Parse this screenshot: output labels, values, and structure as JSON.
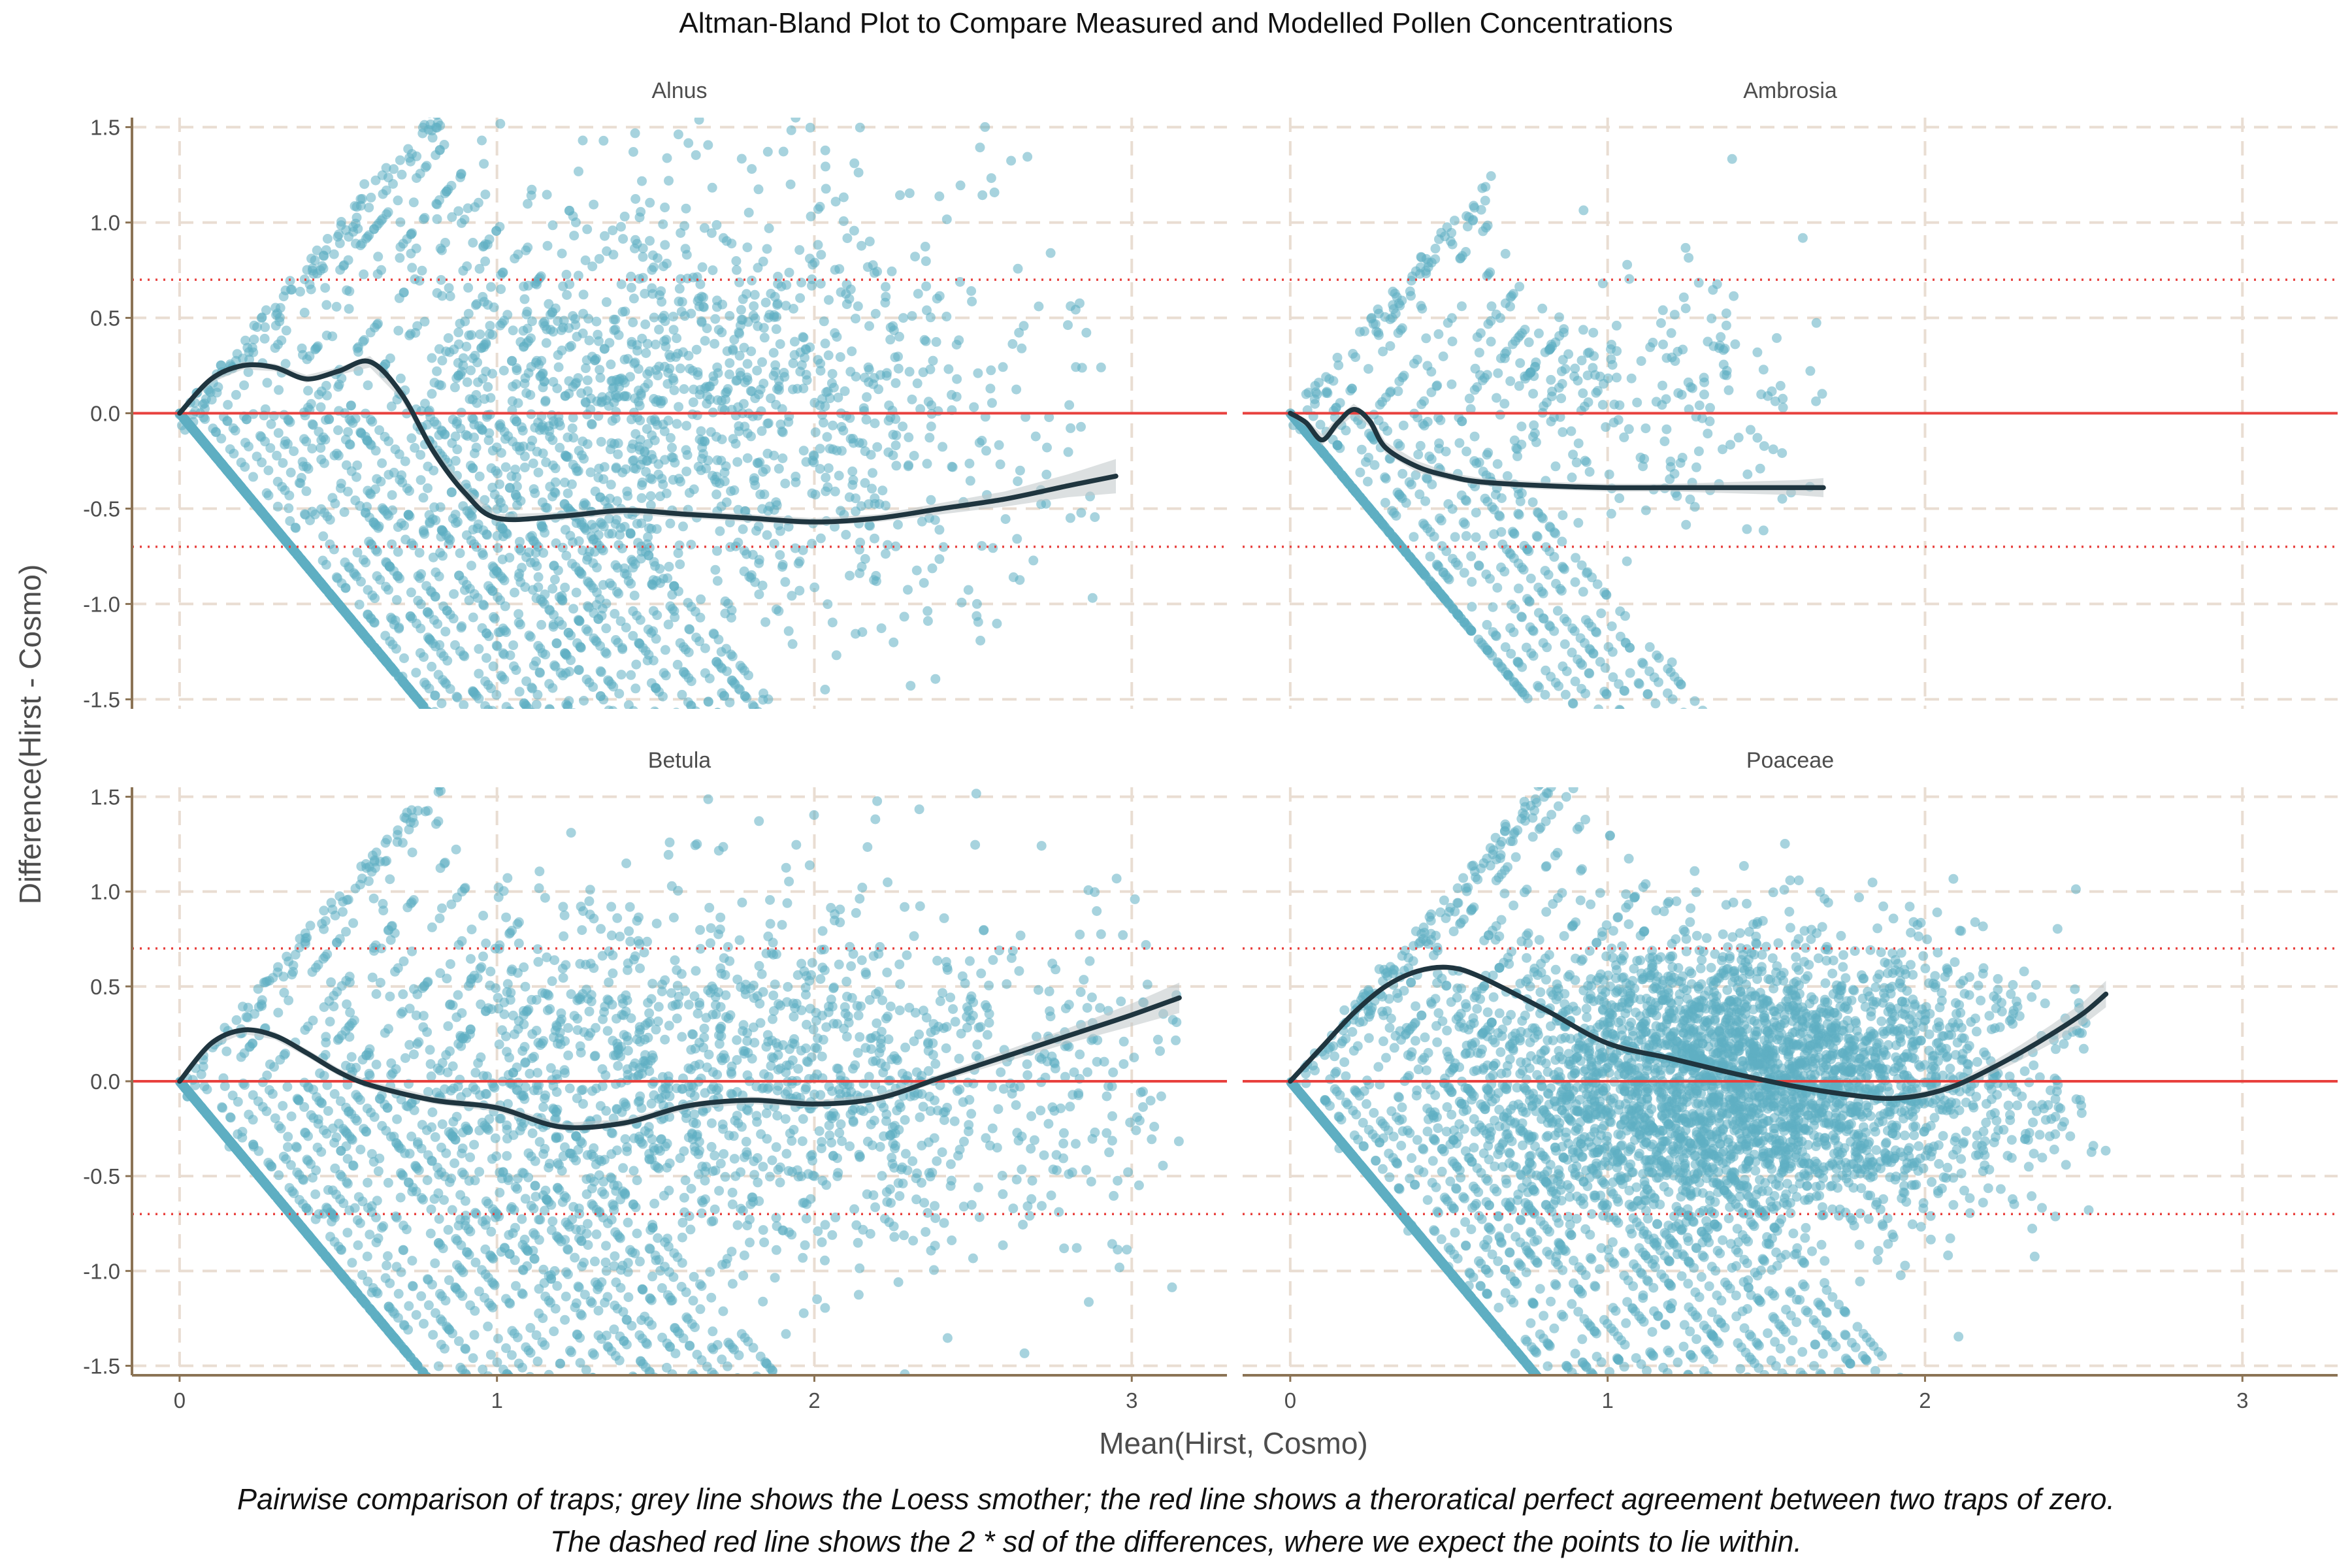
{
  "chart_data": {
    "type": "scatter",
    "title": "Altman-Bland Plot to Compare Measured and Modelled Pollen Concentrations",
    "xlabel": "Mean(Hirst, Cosmo)",
    "ylabel": "Difference(Hirst - Cosmo)",
    "caption_lines": [
      "Pairwise comparison of traps; grey line shows the Loess smother; the red line shows a theroratical perfect agreement between two traps of zero.",
      "The dashed red line shows the 2 * sd of the differences, where we expect the points to lie within."
    ],
    "xlim": [
      -0.15,
      3.3
    ],
    "ylim": [
      -1.55,
      1.55
    ],
    "x_ticks": [
      0,
      1,
      2,
      3
    ],
    "x_tick_labels": [
      "0",
      "1",
      "2",
      "3"
    ],
    "y_ticks": [
      -1.5,
      -1.0,
      -0.5,
      0.0,
      0.5,
      1.0,
      1.5
    ],
    "y_tick_labels": [
      "-1.5",
      "-1.0",
      "-0.5",
      "0.0",
      "0.5",
      "1.0",
      "1.5"
    ],
    "grid": true,
    "reference_line_y": 0,
    "sd_limits": [
      0.7,
      -0.7
    ],
    "colors": {
      "points": "#5eaec3",
      "smoother": "#1f353f",
      "ribbon": "#bfc6c9",
      "reference": "#e8413e",
      "sd_limits": "#e8413e",
      "grid": "#e9ddd2",
      "axis": "#8b7355"
    },
    "panels": [
      {
        "label": "Alnus",
        "smoother": {
          "x": [
            0,
            0.1,
            0.2,
            0.3,
            0.4,
            0.5,
            0.6,
            0.7,
            0.8,
            0.9,
            1.0,
            1.2,
            1.4,
            1.6,
            1.8,
            2.0,
            2.2,
            2.4,
            2.6,
            2.8,
            2.95
          ],
          "y": [
            0,
            0.18,
            0.25,
            0.24,
            0.18,
            0.22,
            0.27,
            0.1,
            -0.2,
            -0.42,
            -0.55,
            -0.54,
            -0.51,
            -0.53,
            -0.55,
            -0.57,
            -0.55,
            -0.5,
            -0.45,
            -0.38,
            -0.33
          ],
          "ribbon_half_width": [
            0.01,
            0.02,
            0.02,
            0.02,
            0.02,
            0.02,
            0.03,
            0.03,
            0.03,
            0.03,
            0.02,
            0.02,
            0.02,
            0.02,
            0.02,
            0.02,
            0.02,
            0.03,
            0.04,
            0.06,
            0.09
          ]
        },
        "scatter": {
          "count": 1400,
          "seed": 11,
          "x_mean": 1.55,
          "x_sd": 0.55,
          "x_max": 2.95,
          "y_sd": 0.7,
          "diag_max_k": 1.1,
          "diag_lines": 18,
          "diag_spacing": 0.13,
          "diag_points_per_line": 60,
          "diag_start": 0.22,
          "diag_xmax": 1.1
        }
      },
      {
        "label": "Ambrosia",
        "smoother": {
          "x": [
            0,
            0.05,
            0.1,
            0.15,
            0.2,
            0.25,
            0.3,
            0.4,
            0.5,
            0.6,
            0.8,
            1.0,
            1.2,
            1.4,
            1.6,
            1.68
          ],
          "y": [
            0,
            -0.05,
            -0.14,
            -0.05,
            0.02,
            -0.04,
            -0.18,
            -0.28,
            -0.33,
            -0.36,
            -0.38,
            -0.39,
            -0.39,
            -0.39,
            -0.39,
            -0.39
          ],
          "ribbon_half_width": [
            0.01,
            0.02,
            0.03,
            0.03,
            0.03,
            0.03,
            0.03,
            0.03,
            0.02,
            0.02,
            0.02,
            0.02,
            0.02,
            0.03,
            0.04,
            0.05
          ]
        },
        "scatter": {
          "count": 240,
          "seed": 23,
          "x_mean": 1.05,
          "x_sd": 0.32,
          "x_max": 1.68,
          "y_sd": 0.45,
          "diag_max_k": 0.85,
          "diag_lines": 9,
          "diag_spacing": 0.13,
          "diag_points_per_line": 40,
          "diag_start": 0.22,
          "diag_xmax": 0.8
        }
      },
      {
        "label": "Betula",
        "smoother": {
          "x": [
            0,
            0.1,
            0.2,
            0.3,
            0.4,
            0.5,
            0.6,
            0.8,
            1.0,
            1.2,
            1.4,
            1.6,
            1.8,
            2.0,
            2.2,
            2.4,
            2.6,
            2.8,
            3.0,
            3.15
          ],
          "y": [
            0,
            0.2,
            0.27,
            0.24,
            0.15,
            0.05,
            -0.02,
            -0.1,
            -0.14,
            -0.24,
            -0.22,
            -0.13,
            -0.1,
            -0.12,
            -0.09,
            0.02,
            0.13,
            0.24,
            0.35,
            0.44
          ],
          "ribbon_half_width": [
            0.01,
            0.02,
            0.02,
            0.02,
            0.02,
            0.02,
            0.02,
            0.02,
            0.02,
            0.02,
            0.02,
            0.02,
            0.02,
            0.02,
            0.02,
            0.02,
            0.03,
            0.04,
            0.06,
            0.08
          ]
        },
        "scatter": {
          "count": 1500,
          "seed": 37,
          "x_mean": 1.75,
          "x_sd": 0.65,
          "x_max": 3.15,
          "y_sd": 0.55,
          "diag_max_k": 1.2,
          "diag_lines": 18,
          "diag_spacing": 0.13,
          "diag_points_per_line": 55,
          "diag_start": 0.22,
          "diag_xmax": 1.1
        }
      },
      {
        "label": "Poaceae",
        "smoother": {
          "x": [
            0,
            0.1,
            0.2,
            0.3,
            0.4,
            0.5,
            0.6,
            0.8,
            1.0,
            1.2,
            1.4,
            1.6,
            1.8,
            1.9,
            2.0,
            2.1,
            2.2,
            2.3,
            2.4,
            2.5,
            2.57
          ],
          "y": [
            0,
            0.18,
            0.36,
            0.5,
            0.58,
            0.6,
            0.55,
            0.38,
            0.2,
            0.12,
            0.04,
            -0.03,
            -0.08,
            -0.09,
            -0.07,
            -0.02,
            0.06,
            0.15,
            0.25,
            0.36,
            0.46
          ],
          "ribbon_half_width": [
            0.01,
            0.01,
            0.01,
            0.01,
            0.01,
            0.01,
            0.01,
            0.01,
            0.01,
            0.01,
            0.01,
            0.01,
            0.01,
            0.01,
            0.02,
            0.02,
            0.03,
            0.04,
            0.05,
            0.06,
            0.07
          ]
        },
        "scatter": {
          "count": 3200,
          "seed": 53,
          "x_mean": 1.45,
          "x_sd": 0.45,
          "x_max": 2.57,
          "y_sd": 0.42,
          "diag_max_k": 1.1,
          "diag_lines": 20,
          "diag_spacing": 0.12,
          "diag_points_per_line": 70,
          "diag_start": 0.22,
          "diag_xmax": 1.2
        }
      }
    ]
  }
}
